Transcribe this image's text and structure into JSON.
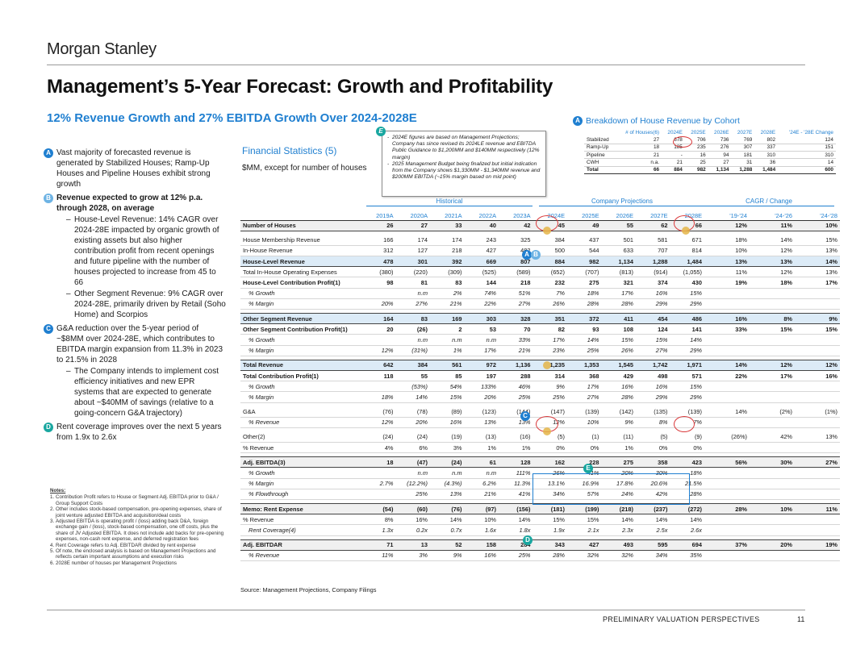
{
  "brand": "Morgan Stanley",
  "title": "Management’s 5-Year Forecast: Growth and Profitability",
  "subtitle": "12% Revenue Growth and 27% EBITDA Growth Over 2024-2028E",
  "bullets": [
    {
      "badge": "A",
      "text": "Vast majority of forecasted revenue is generated by Stabilized Houses; Ramp-Up Houses and Pipeline Houses exhibit strong growth",
      "bold": false,
      "subs": []
    },
    {
      "badge": "B",
      "text": "Revenue expected to grow at 12% p.a. through 2028, on average",
      "bold": true,
      "subs": [
        "House-Level Revenue: 14% CAGR over 2024-28E impacted by organic growth of existing assets but also higher contribution profit from recent openings and future pipeline with the number of houses projected to increase from 45 to 66",
        "Other Segment Revenue: 9% CAGR over 2024-28E, primarily driven by Retail (Soho Home) and Scorpios"
      ]
    },
    {
      "badge": "C",
      "text": "G&A reduction over the 5-year period of ~$8MM over 2024-28E, which contributes to EBITDA margin expansion from 11.3% in 2023 to 21.5% in 2028",
      "bold": false,
      "subs": [
        "The Company intends to implement cost efficiency initiatives and new EPR systems that are expected to generate about ~$40MM of savings (relative to a going-concern G&A trajectory)"
      ]
    },
    {
      "badge": "D",
      "text": "Rent coverage improves over the next 5 years from 1.9x to 2.6x",
      "bold": false,
      "subs": []
    }
  ],
  "notes": {
    "heading": "Notes:",
    "items": [
      "Contribution Profit refers to House or Segment Adj. EBITDA prior to G&A / Group Support Costs",
      "Other includes stock-based compensation, pre-opening expenses, share of joint venture adjusted EBITDA and acquisition/deal costs",
      "Adjusted EBITDA is operating profit / (loss) adding back D&A, foreign exchange gain / (loss), stock-based compensation, one off costs, plus the share of JV Adjusted EBITDA. It does not include add backs for pre-opening expenses, non-cash rent expense, and deferred registration fees",
      "Rent Coverage refers to Adj. EBITDAR divided by rent expense",
      "Of note, the enclosed analysis is based on Management Projections and reflects certain important assumptions and execution risks",
      "2028E number of houses per Management Projections"
    ]
  },
  "financial_stats": {
    "title": "Financial Statistics (5)",
    "subtitle": "$MM, except for number of houses"
  },
  "callout": {
    "badge": "E",
    "items": [
      "2024E figures are based on Management Projections; Company has since revised its 2024LE revenue and EBITDA Public Guidance to $1,200MM and $140MM respectively (12% margin)",
      "2025 Management Budget being finalized but initial indication from the Company shows $1,330MM - $1,340MM revenue and $200MM EBITDA (~15% margin based on mid point)"
    ]
  },
  "cohort": {
    "badge": "A",
    "title": "Breakdown of House Revenue by Cohort",
    "headers": [
      "",
      "# of Houses(6)",
      "2024E",
      "2025E",
      "2026E",
      "2027E",
      "2028E",
      "'24E - '28E Change"
    ],
    "rows": [
      [
        "Stabilized",
        "27",
        "678",
        "706",
        "736",
        "769",
        "802",
        "124"
      ],
      [
        "Ramp-Up",
        "18",
        "185",
        "235",
        "276",
        "307",
        "337",
        "151"
      ],
      [
        "Pipeline",
        "21",
        "-",
        "16",
        "94",
        "181",
        "310",
        "310"
      ],
      [
        "CWH",
        "n.a.",
        "21",
        "25",
        "27",
        "31",
        "36",
        "14"
      ]
    ],
    "total": [
      "Total",
      "66",
      "884",
      "982",
      "1,134",
      "1,288",
      "1,484",
      "600"
    ]
  },
  "groups": {
    "historical": "Historical",
    "projections": "Company Projections",
    "cagr": "CAGR / Change"
  },
  "columns": [
    "2019A",
    "2020A",
    "2021A",
    "2022A",
    "2023A",
    "2024E",
    "2025E",
    "2026E",
    "2027E",
    "2028E",
    "'19-'24",
    "'24-'26",
    "'24-'28"
  ],
  "rows": [
    {
      "label": "Number of Houses",
      "style": "b sh bb",
      "v": [
        "26",
        "27",
        "33",
        "40",
        "42",
        "45",
        "49",
        "55",
        "62",
        "66",
        "12%",
        "11%",
        "10%"
      ]
    },
    {
      "sp": true
    },
    {
      "label": "House Membership Revenue",
      "style": "lb",
      "v": [
        "166",
        "174",
        "174",
        "243",
        "325",
        "384",
        "437",
        "501",
        "581",
        "671",
        "18%",
        "14%",
        "15%"
      ]
    },
    {
      "label": "In-House Revenue",
      "style": "lb",
      "v": [
        "312",
        "127",
        "218",
        "427",
        "482",
        "500",
        "544",
        "633",
        "707",
        "814",
        "10%",
        "12%",
        "13%"
      ]
    },
    {
      "label": "House-Level Revenue",
      "style": "b hl bt bb",
      "v": [
        "478",
        "301",
        "392",
        "669",
        "807",
        "884",
        "982",
        "1,134",
        "1,288",
        "1,484",
        "13%",
        "13%",
        "14%"
      ]
    },
    {
      "label": "Total In-House Operating Expenses",
      "style": "lb",
      "v": [
        "(380)",
        "(220)",
        "(309)",
        "(525)",
        "(589)",
        "(652)",
        "(707)",
        "(813)",
        "(914)",
        "(1,055)",
        "11%",
        "12%",
        "13%"
      ]
    },
    {
      "label": "House-Level Contribution Profit(1)",
      "style": "b lb",
      "v": [
        "98",
        "81",
        "83",
        "144",
        "218",
        "232",
        "275",
        "321",
        "374",
        "430",
        "19%",
        "18%",
        "17%"
      ]
    },
    {
      "label": "% Growth",
      "style": "i lb",
      "v": [
        "",
        "n.m",
        "2%",
        "74%",
        "51%",
        "7%",
        "18%",
        "17%",
        "16%",
        "15%",
        "",
        "",
        ""
      ]
    },
    {
      "label": "% Margin",
      "style": "i lb",
      "v": [
        "20%",
        "27%",
        "21%",
        "22%",
        "27%",
        "26%",
        "28%",
        "28%",
        "29%",
        "29%",
        "",
        "",
        ""
      ]
    },
    {
      "sp": true
    },
    {
      "label": "Other Segment Revenue",
      "style": "b hl bt bb",
      "v": [
        "164",
        "83",
        "169",
        "303",
        "328",
        "351",
        "372",
        "411",
        "454",
        "486",
        "16%",
        "8%",
        "9%"
      ]
    },
    {
      "label": "Other Segment Contribution Profit(1)",
      "style": "b lb",
      "v": [
        "20",
        "(26)",
        "2",
        "53",
        "70",
        "82",
        "93",
        "108",
        "124",
        "141",
        "33%",
        "15%",
        "15%"
      ]
    },
    {
      "label": "% Growth",
      "style": "i lb",
      "v": [
        "",
        "n.m",
        "n.m",
        "n.m",
        "33%",
        "17%",
        "14%",
        "15%",
        "15%",
        "14%",
        "",
        "",
        ""
      ]
    },
    {
      "label": "% Margin",
      "style": "i lb",
      "v": [
        "12%",
        "(31%)",
        "1%",
        "17%",
        "21%",
        "23%",
        "25%",
        "26%",
        "27%",
        "29%",
        "",
        "",
        ""
      ]
    },
    {
      "sp": true
    },
    {
      "label": "Total Revenue",
      "style": "b hl bt bb",
      "v": [
        "642",
        "384",
        "561",
        "972",
        "1,136",
        "1,235",
        "1,353",
        "1,545",
        "1,742",
        "1,971",
        "14%",
        "12%",
        "12%"
      ]
    },
    {
      "label": "Total Contribution Profit(1)",
      "style": "b lb",
      "v": [
        "118",
        "55",
        "85",
        "197",
        "288",
        "314",
        "368",
        "429",
        "498",
        "571",
        "22%",
        "17%",
        "16%"
      ]
    },
    {
      "label": "% Growth",
      "style": "i lb",
      "v": [
        "",
        "(53%)",
        "54%",
        "133%",
        "46%",
        "9%",
        "17%",
        "16%",
        "16%",
        "15%",
        "",
        "",
        ""
      ]
    },
    {
      "label": "% Margin",
      "style": "i lb",
      "v": [
        "18%",
        "14%",
        "15%",
        "20%",
        "25%",
        "25%",
        "27%",
        "28%",
        "29%",
        "29%",
        "",
        "",
        ""
      ]
    },
    {
      "sp": true
    },
    {
      "label": "G&A",
      "style": "lb",
      "v": [
        "(76)",
        "(78)",
        "(89)",
        "(123)",
        "(144)",
        "(147)",
        "(139)",
        "(142)",
        "(135)",
        "(139)",
        "14%",
        "(2%)",
        "(1%)"
      ]
    },
    {
      "label": "% Revenue",
      "style": "i lb",
      "v": [
        "12%",
        "20%",
        "16%",
        "13%",
        "13%",
        "12%",
        "10%",
        "9%",
        "8%",
        "7%",
        "",
        "",
        ""
      ]
    },
    {
      "sp": true
    },
    {
      "label": "Other(2)",
      "style": "lb",
      "v": [
        "(24)",
        "(24)",
        "(19)",
        "(13)",
        "(16)",
        "(5)",
        "(1)",
        "(11)",
        "(5)",
        "(9)",
        "(26%)",
        "42%",
        "13%"
      ]
    },
    {
      "label": "% Revenue",
      "style": "lb",
      "v": [
        "4%",
        "6%",
        "3%",
        "1%",
        "1%",
        "0%",
        "0%",
        "1%",
        "0%",
        "0%",
        "",
        "",
        ""
      ]
    },
    {
      "sp": true
    },
    {
      "label": "Adj. EBITDA(3)",
      "style": "b sh bt bb",
      "v": [
        "18",
        "(47)",
        "(24)",
        "61",
        "128",
        "162",
        "228",
        "275",
        "358",
        "423",
        "56%",
        "30%",
        "27%"
      ]
    },
    {
      "label": "% Growth",
      "style": "i lb",
      "v": [
        "",
        "n.m",
        "n.m",
        "n.m",
        "111%",
        "26%",
        "41%",
        "20%",
        "30%",
        "18%",
        "",
        "",
        ""
      ]
    },
    {
      "label": "% Margin",
      "style": "i lb",
      "v": [
        "2.7%",
        "(12.2%)",
        "(4.3%)",
        "6.2%",
        "11.3%",
        "13.1%",
        "16.9%",
        "17.8%",
        "20.6%",
        "21.5%",
        "",
        "",
        ""
      ]
    },
    {
      "label": "% Flowthrough",
      "style": "i lb",
      "v": [
        "",
        "25%",
        "13%",
        "21%",
        "41%",
        "34%",
        "57%",
        "24%",
        "42%",
        "28%",
        "",
        "",
        ""
      ]
    },
    {
      "sp": true
    },
    {
      "label": "Memo: Rent Expense",
      "style": "b sh bt bb",
      "v": [
        "(54)",
        "(60)",
        "(76)",
        "(97)",
        "(156)",
        "(181)",
        "(199)",
        "(218)",
        "(237)",
        "(272)",
        "28%",
        "10%",
        "11%"
      ]
    },
    {
      "label": "% Revenue",
      "style": "lb",
      "v": [
        "8%",
        "16%",
        "14%",
        "10%",
        "14%",
        "15%",
        "15%",
        "14%",
        "14%",
        "14%",
        "",
        "",
        ""
      ]
    },
    {
      "label": "Rent Coverage(4)",
      "style": "i lb",
      "v": [
        "1.3x",
        "0.2x",
        "0.7x",
        "1.6x",
        "1.8x",
        "1.9x",
        "2.1x",
        "2.3x",
        "2.5x",
        "2.6x",
        "",
        "",
        ""
      ]
    },
    {
      "sp": true
    },
    {
      "label": "Adj. EBITDAR",
      "style": "b sh bt bb",
      "v": [
        "71",
        "13",
        "52",
        "158",
        "284",
        "343",
        "427",
        "493",
        "595",
        "694",
        "37%",
        "20%",
        "19%"
      ]
    },
    {
      "label": "% Revenue",
      "style": "i lb",
      "v": [
        "11%",
        "3%",
        "9%",
        "16%",
        "25%",
        "28%",
        "32%",
        "32%",
        "34%",
        "35%",
        "",
        "",
        ""
      ]
    }
  ],
  "source": "Source: Management Projections, Company Filings",
  "footer": "PRELIMINARY VALUATION PERSPECTIVES",
  "page_number": "11",
  "colors": {
    "accent": "#1f7fd0",
    "highlight_row": "#dcebf7",
    "annotation_red": "#d9383a"
  }
}
